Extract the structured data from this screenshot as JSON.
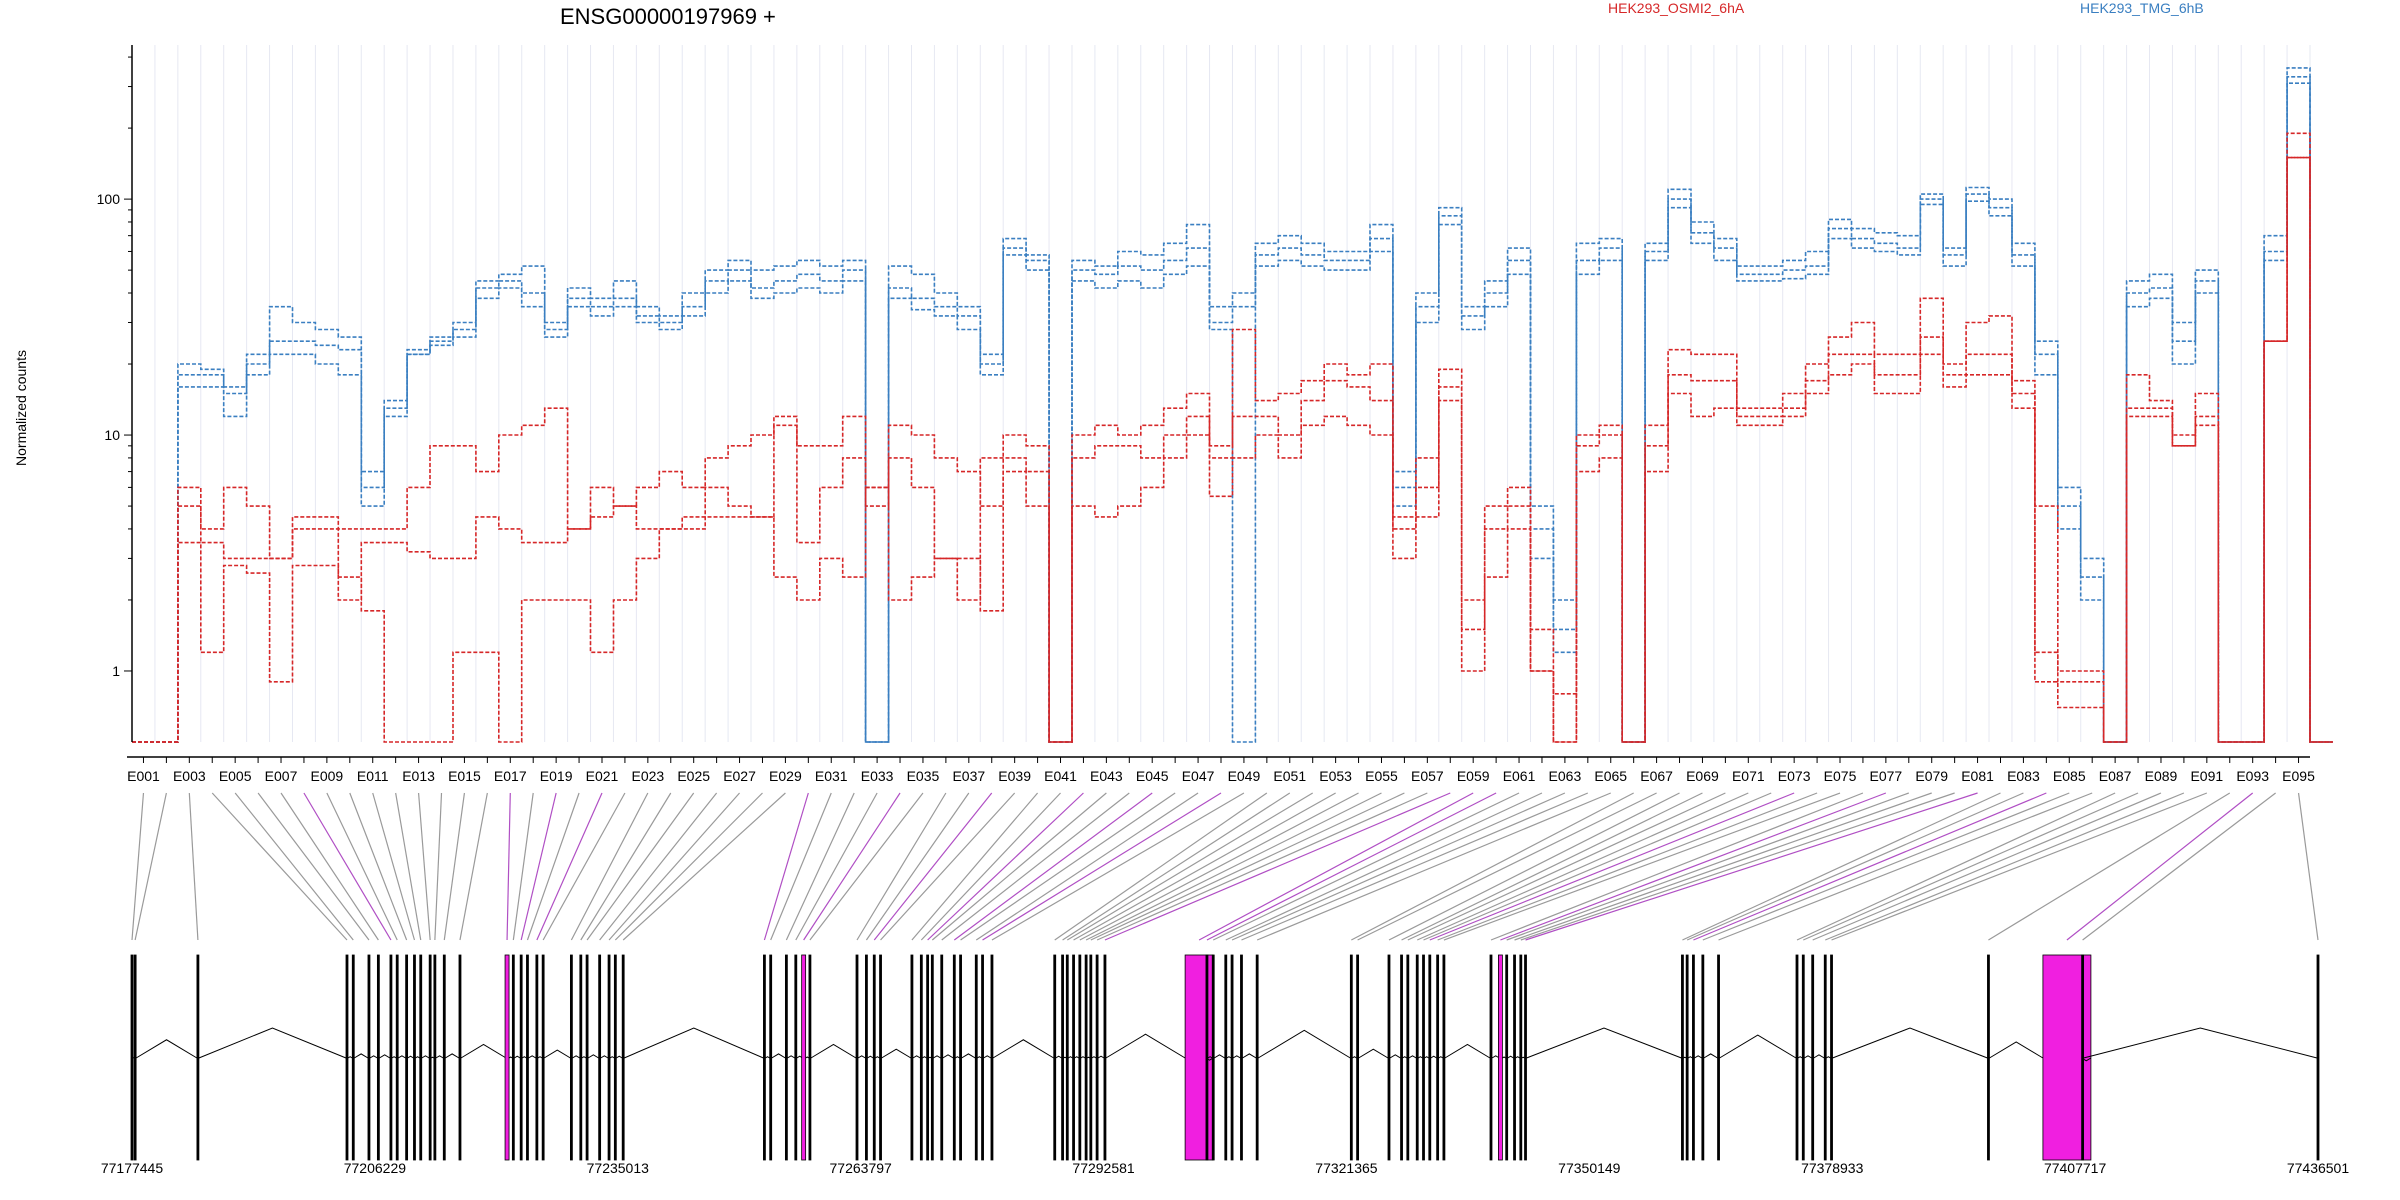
{
  "chart_data": {
    "type": "line",
    "title": "ENSG00000197969 +",
    "ylabel": "Normalized counts",
    "yscale": "log",
    "ylim": [
      0.5,
      450
    ],
    "yticks": [
      1,
      10,
      100
    ],
    "ytick_labels": [
      "1",
      "10",
      "100"
    ],
    "grid": "vertical lines at exon bins",
    "legend": [
      {
        "name": "HEK293_OSMI2_6hA",
        "color": "#d62728",
        "position": "top-center-right"
      },
      {
        "name": "HEK293_TMG_6hB",
        "color": "#3a7fc1",
        "position": "top-right"
      }
    ],
    "exon_count": 95,
    "exon_labels": [
      "E001",
      "E003",
      "E005",
      "E007",
      "E009",
      "E011",
      "E013",
      "E015",
      "E017",
      "E019",
      "E021",
      "E023",
      "E025",
      "E027",
      "E029",
      "E031",
      "E033",
      "E035",
      "E037",
      "E039",
      "E041",
      "E043",
      "E045",
      "E047",
      "E049",
      "E051",
      "E053",
      "E055",
      "E057",
      "E059",
      "E061",
      "E063",
      "E065",
      "E067",
      "E069",
      "E071",
      "E073",
      "E075",
      "E077",
      "E079",
      "E081",
      "E083",
      "E085",
      "E087",
      "E089",
      "E091",
      "E093",
      "E095"
    ],
    "series": [
      {
        "name": "HEK293_TMG_6hB",
        "values": [
          0.5,
          0.5,
          20,
          19,
          16,
          22,
          35,
          30,
          28,
          26,
          7,
          14,
          22,
          25,
          28,
          45,
          48,
          52,
          30,
          42,
          38,
          45,
          35,
          32,
          40,
          50,
          55,
          50,
          52,
          55,
          52,
          55,
          0.5,
          52,
          48,
          40,
          35,
          22,
          68,
          58,
          0.5,
          55,
          52,
          60,
          58,
          65,
          78,
          35,
          40,
          65,
          70,
          65,
          60,
          60,
          78,
          7,
          40,
          92,
          35,
          45,
          62,
          5,
          2,
          65,
          68,
          0.5,
          65,
          110,
          80,
          68,
          52,
          52,
          55,
          60,
          82,
          75,
          72,
          70,
          105,
          62,
          112,
          100,
          65,
          25,
          6,
          3,
          0.5,
          45,
          48,
          30,
          50,
          0.5,
          0.5,
          70,
          360,
          0.5
        ]
      },
      {
        "name": "HEK293_TMG_6hB",
        "values": [
          0.5,
          0.5,
          18,
          18,
          15,
          20,
          25,
          25,
          24,
          23,
          6,
          13,
          23,
          26,
          30,
          42,
          45,
          40,
          28,
          38,
          35,
          38,
          32,
          30,
          35,
          45,
          50,
          42,
          45,
          48,
          45,
          50,
          0.5,
          42,
          38,
          35,
          32,
          20,
          62,
          55,
          0.5,
          50,
          48,
          52,
          50,
          55,
          62,
          30,
          35,
          58,
          62,
          58,
          55,
          55,
          68,
          6,
          35,
          85,
          32,
          40,
          55,
          4,
          1.5,
          55,
          62,
          0.5,
          60,
          100,
          72,
          62,
          48,
          48,
          50,
          52,
          75,
          68,
          65,
          62,
          100,
          58,
          105,
          92,
          58,
          22,
          5,
          2.5,
          0.5,
          40,
          42,
          25,
          45,
          0.5,
          0.5,
          60,
          330,
          0.5
        ]
      },
      {
        "name": "HEK293_TMG_6hB",
        "values": [
          0.5,
          0.5,
          16,
          16,
          12,
          18,
          22,
          22,
          20,
          18,
          5,
          12,
          22,
          24,
          26,
          38,
          42,
          35,
          26,
          35,
          32,
          35,
          30,
          28,
          32,
          40,
          45,
          38,
          40,
          42,
          40,
          45,
          0.5,
          38,
          34,
          32,
          28,
          18,
          58,
          50,
          0.5,
          45,
          42,
          45,
          42,
          48,
          52,
          28,
          0.5,
          52,
          55,
          52,
          50,
          50,
          60,
          5,
          30,
          78,
          28,
          35,
          48,
          3,
          1.2,
          48,
          55,
          0.5,
          55,
          92,
          65,
          55,
          45,
          45,
          46,
          48,
          68,
          62,
          60,
          58,
          95,
          52,
          98,
          85,
          52,
          18,
          4,
          2,
          0.5,
          35,
          38,
          20,
          40,
          0.5,
          0.5,
          55,
          310,
          0.5
        ]
      },
      {
        "name": "HEK293_OSMI2_6hA",
        "values": [
          0.5,
          0.5,
          6,
          4,
          6,
          5,
          3,
          4,
          4,
          4,
          4,
          4,
          6,
          9,
          9,
          7,
          10,
          11,
          13,
          4,
          6,
          5,
          6,
          7,
          6,
          8,
          9,
          10,
          11,
          9,
          9,
          12,
          6,
          11,
          10,
          8,
          7,
          5,
          10,
          9,
          0.5,
          10,
          11,
          10,
          11,
          13,
          15,
          9,
          28,
          14,
          15,
          17,
          20,
          18,
          20,
          3,
          8,
          19,
          1.5,
          5,
          6,
          1,
          0.5,
          10,
          11,
          0.5,
          11,
          23,
          22,
          22,
          13,
          13,
          15,
          20,
          26,
          30,
          22,
          22,
          38,
          20,
          30,
          32,
          17,
          5,
          1,
          1,
          0.5,
          18,
          14,
          10,
          15,
          0.5,
          0.5,
          25,
          190,
          0.5
        ]
      },
      {
        "name": "HEK293_OSMI2_6hA",
        "values": [
          0.5,
          0.5,
          5,
          3.5,
          3,
          3,
          3,
          4.5,
          4.5,
          2,
          3.5,
          3.5,
          3.2,
          3,
          3,
          4.5,
          4,
          3.5,
          3.5,
          4,
          4.5,
          5,
          4,
          4,
          4.5,
          4.5,
          4.5,
          4.5,
          12,
          3.5,
          6,
          8,
          5,
          8,
          6,
          3,
          2,
          8,
          8,
          7,
          0.5,
          8,
          9,
          9,
          8,
          10,
          12,
          8,
          12,
          12,
          10,
          14,
          17,
          16,
          14,
          4,
          6,
          16,
          2,
          4,
          5,
          1.5,
          0.8,
          9,
          10,
          0.5,
          9,
          18,
          17,
          17,
          12,
          12,
          13,
          17,
          22,
          22,
          18,
          18,
          26,
          18,
          22,
          22,
          15,
          1.2,
          0.9,
          0.9,
          0.5,
          13,
          13,
          9,
          12,
          0.5,
          0.5,
          25,
          150,
          0.5
        ]
      },
      {
        "name": "HEK293_OSMI2_6hA",
        "values": [
          0.5,
          0.5,
          3.5,
          1.2,
          2.8,
          2.6,
          0.9,
          2.8,
          2.8,
          2.5,
          1.8,
          0.5,
          0.5,
          0.5,
          1.2,
          1.2,
          0.5,
          2,
          2,
          2,
          1.2,
          2,
          3,
          4,
          4,
          6,
          5,
          4.5,
          2.5,
          2,
          3,
          2.5,
          6,
          2,
          2.5,
          3,
          3,
          1.8,
          7,
          5,
          0.5,
          5,
          4.5,
          5,
          6,
          8,
          10,
          5.5,
          8,
          10,
          8,
          11,
          12,
          11,
          10,
          4.5,
          4.5,
          14,
          1,
          2.5,
          4,
          1,
          0.5,
          7,
          8,
          0.5,
          7,
          15,
          12,
          13,
          11,
          11,
          12,
          15,
          18,
          20,
          15,
          15,
          22,
          16,
          18,
          18,
          13,
          0.9,
          0.7,
          0.7,
          0.5,
          12,
          12,
          9,
          11,
          0.5,
          0.5,
          25,
          150,
          0.5
        ]
      }
    ],
    "genome_tick_labels": [
      "77177445",
      "77206229",
      "77235013",
      "77263797",
      "77292581",
      "77321365",
      "77350149",
      "77378933",
      "77407717",
      "77436501"
    ],
    "genome_range": [
      77177445,
      77436501
    ]
  }
}
